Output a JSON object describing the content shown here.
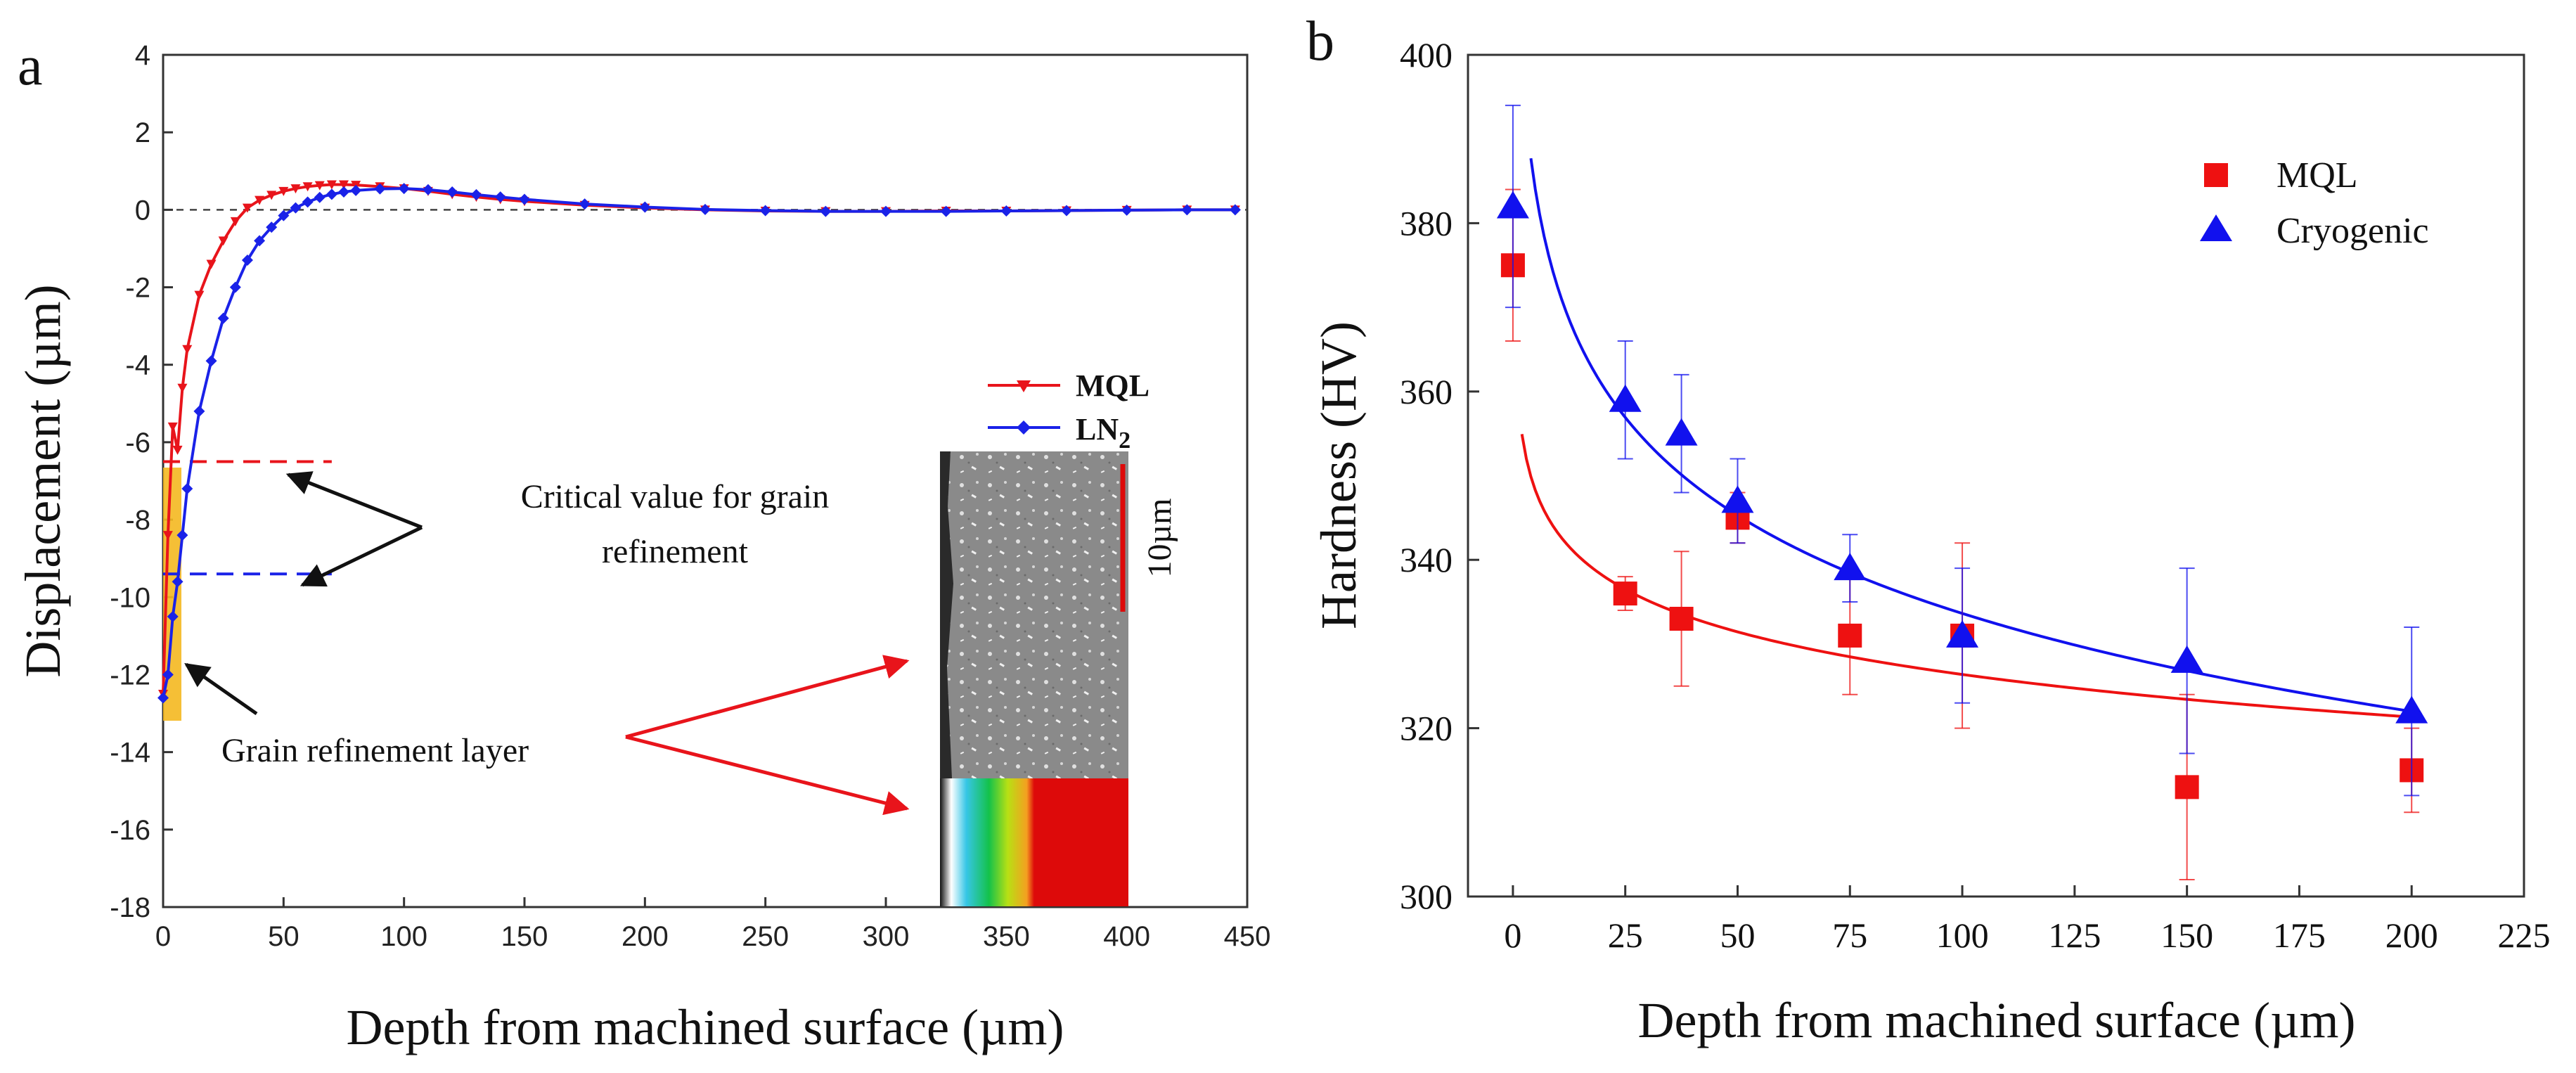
{
  "chart_data": [
    {
      "panel": "a",
      "type": "line",
      "xlabel": "Depth from machined surface (µm)",
      "ylabel": "Displacement (µm)",
      "xlim": [
        0,
        450
      ],
      "ylim": [
        -18,
        4
      ],
      "xticks": [
        0,
        50,
        100,
        150,
        200,
        250,
        300,
        350,
        400,
        450
      ],
      "yticks": [
        4,
        2,
        0,
        -2,
        -4,
        -6,
        -8,
        -10,
        -12,
        -14,
        -16,
        -18
      ],
      "colors": {
        "MQL": "#e8141b",
        "LN2": "#1a22e8"
      },
      "series": [
        {
          "name": "MQL",
          "x": [
            0,
            2,
            4,
            6,
            8,
            10,
            15,
            20,
            25,
            30,
            35,
            40,
            45,
            50,
            55,
            60,
            65,
            70,
            75,
            80,
            90,
            100,
            110,
            120,
            130,
            140,
            150,
            175,
            200,
            225,
            250,
            275,
            300,
            325,
            350,
            375,
            400,
            425,
            445
          ],
          "y": [
            -12.5,
            -8.4,
            -5.6,
            -6.2,
            -4.6,
            -3.6,
            -2.2,
            -1.4,
            -0.8,
            -0.3,
            0.05,
            0.25,
            0.38,
            0.48,
            0.55,
            0.6,
            0.63,
            0.65,
            0.65,
            0.64,
            0.6,
            0.55,
            0.48,
            0.4,
            0.33,
            0.27,
            0.22,
            0.12,
            0.05,
            0.0,
            -0.03,
            -0.04,
            -0.04,
            -0.03,
            -0.03,
            -0.02,
            -0.01,
            0.0,
            0.0
          ]
        },
        {
          "name": "LN2",
          "x": [
            0,
            2,
            4,
            6,
            8,
            10,
            15,
            20,
            25,
            30,
            35,
            40,
            45,
            50,
            55,
            60,
            65,
            70,
            75,
            80,
            90,
            100,
            110,
            120,
            130,
            140,
            150,
            175,
            200,
            225,
            250,
            275,
            300,
            325,
            350,
            375,
            400,
            425,
            445
          ],
          "y": [
            -12.6,
            -12.0,
            -10.5,
            -9.6,
            -8.4,
            -7.2,
            -5.2,
            -3.9,
            -2.8,
            -2.0,
            -1.3,
            -0.8,
            -0.45,
            -0.15,
            0.05,
            0.2,
            0.32,
            0.4,
            0.46,
            0.5,
            0.54,
            0.55,
            0.52,
            0.46,
            0.39,
            0.33,
            0.27,
            0.15,
            0.07,
            0.01,
            -0.02,
            -0.04,
            -0.04,
            -0.04,
            -0.03,
            -0.02,
            -0.01,
            0.0,
            0.0
          ]
        }
      ],
      "critical_lines": [
        {
          "series": "MQL",
          "y": -6.5,
          "x_range": [
            0,
            70
          ]
        },
        {
          "series": "LN2",
          "y": -9.4,
          "x_range": [
            0,
            70
          ]
        }
      ],
      "annotations": {
        "critical": [
          "Critical value for grain",
          "refinement"
        ],
        "layer": "Grain refinement layer",
        "scale_bar": "10µm"
      },
      "legend": {
        "position": "right",
        "labels": [
          "MQL",
          "LN",
          "2"
        ]
      }
    },
    {
      "panel": "b",
      "type": "scatter",
      "xlabel": "Depth from machined surface (µm)",
      "ylabel": "Hardness (HV)",
      "xlim": [
        -10,
        225
      ],
      "ylim": [
        300,
        400
      ],
      "xticks": [
        0,
        25,
        50,
        75,
        100,
        125,
        150,
        175,
        200,
        225
      ],
      "yticks": [
        300,
        320,
        340,
        360,
        380,
        400
      ],
      "colors": {
        "MQL": "#ee1111",
        "Cryogenic": "#1111ee"
      },
      "series": [
        {
          "name": "MQL",
          "marker": "square",
          "x": [
            0,
            25,
            37.5,
            50,
            75,
            100,
            150,
            200
          ],
          "y": [
            375,
            336,
            333,
            345,
            331,
            331,
            313,
            315
          ],
          "err": [
            9,
            2,
            8,
            3,
            7,
            11,
            11,
            5
          ],
          "fit": {
            "a": 360,
            "b": -7.3,
            "x_range": [
              2,
              200
            ]
          }
        },
        {
          "name": "Cryogenic",
          "marker": "triangle",
          "x": [
            0,
            25,
            37.5,
            50,
            75,
            100,
            150,
            200
          ],
          "y": [
            382,
            359,
            355,
            347,
            339,
            331,
            328,
            322
          ],
          "err": [
            12,
            7,
            7,
            5,
            4,
            8,
            11,
            10
          ],
          "fit": {
            "a": 411,
            "b": -16.8,
            "x_range": [
              4,
              200
            ]
          }
        }
      ],
      "legend": {
        "position": "top-right",
        "labels": [
          "MQL",
          "Cryogenic"
        ]
      }
    }
  ]
}
